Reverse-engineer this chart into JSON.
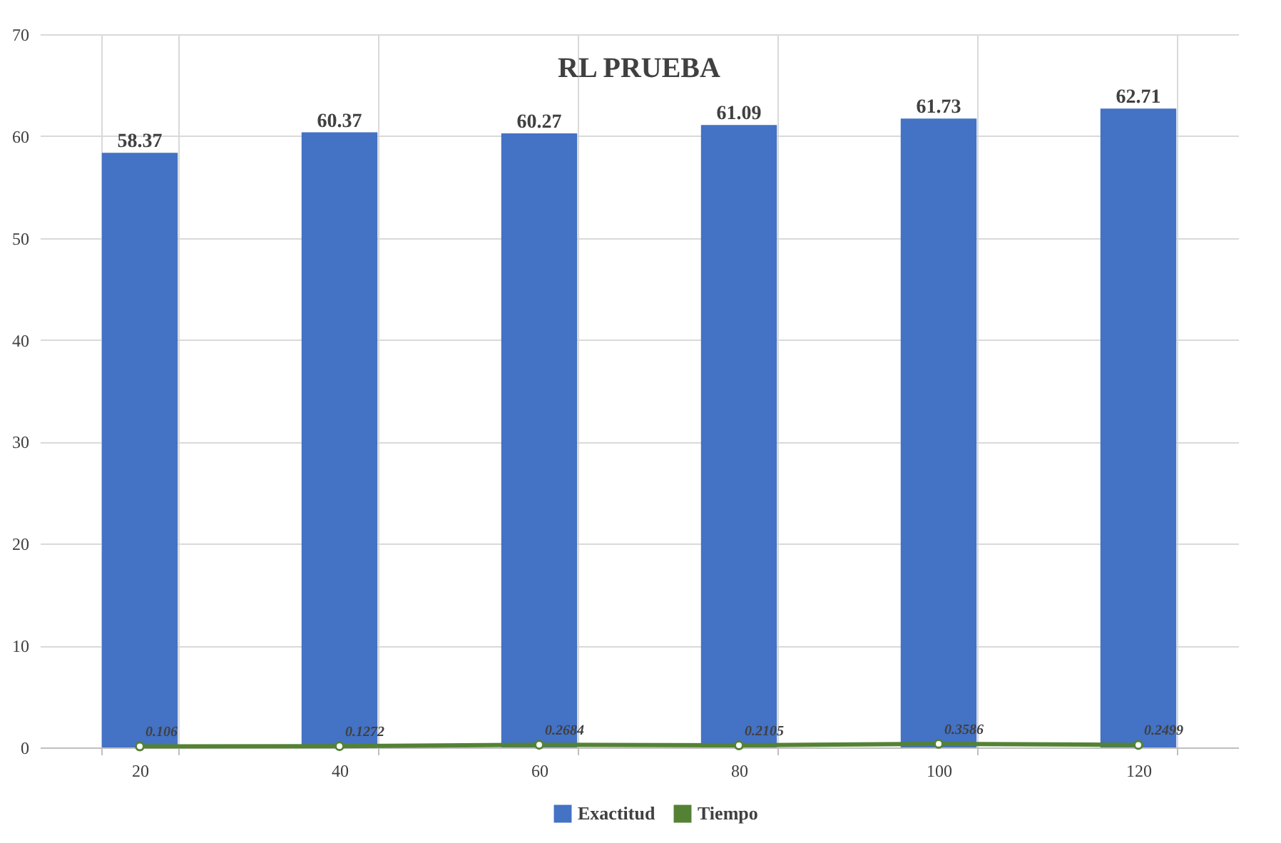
{
  "chart_data": {
    "type": "bar",
    "title": "RL PRUEBA",
    "categories": [
      "20",
      "40",
      "60",
      "80",
      "100",
      "120"
    ],
    "series": [
      {
        "name": "Exactitud",
        "color": "#4472c4",
        "values": [
          58.37,
          60.37,
          60.27,
          61.09,
          61.73,
          62.71
        ]
      },
      {
        "name": "Tiempo",
        "type": "line",
        "color": "#548235",
        "values": [
          0.106,
          0.1272,
          0.2684,
          0.2105,
          0.3586,
          0.2499
        ]
      }
    ],
    "ylim": [
      0,
      70
    ],
    "yticks": [
      0,
      10,
      20,
      30,
      40,
      50,
      60,
      70
    ],
    "grid": true,
    "legend": "bottom",
    "data_labels": true,
    "marker": "circle",
    "line_style": "solid"
  }
}
